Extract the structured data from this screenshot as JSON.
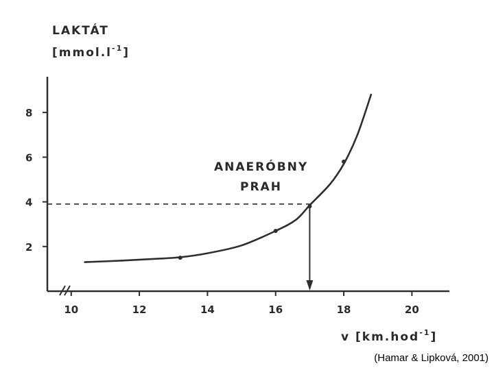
{
  "chart_data": {
    "type": "line",
    "ylabel_line1": "LAKTÁT",
    "ylabel_line2": "[mmol.l",
    "ylabel_sup": "-1",
    "ylabel_close": "]",
    "xlabel": "v [km.hod",
    "xlabel_sup": "-1",
    "xlabel_close": "]",
    "x_ticks": [
      "10",
      "12",
      "14",
      "16",
      "18",
      "20"
    ],
    "y_ticks": [
      "2",
      "4",
      "6",
      "8"
    ],
    "xlim": [
      9.3,
      21.1
    ],
    "ylim": [
      0,
      9.6
    ],
    "axis_break": true,
    "series": [
      {
        "curve": [
          [
            10.4,
            1.3
          ],
          [
            11.5,
            1.37
          ],
          [
            12.5,
            1.45
          ],
          [
            13.2,
            1.52
          ],
          [
            14.0,
            1.7
          ],
          [
            15.0,
            2.05
          ],
          [
            16.0,
            2.7
          ],
          [
            16.6,
            3.2
          ],
          [
            17.0,
            3.85
          ],
          [
            17.6,
            4.8
          ],
          [
            18.0,
            5.7
          ],
          [
            18.4,
            7.0
          ],
          [
            18.8,
            8.8
          ]
        ],
        "points": [
          [
            13.2,
            1.5
          ],
          [
            16.0,
            2.7
          ],
          [
            17.0,
            3.8
          ],
          [
            18.0,
            5.8
          ]
        ]
      }
    ],
    "threshold": {
      "x": 17.0,
      "y": 3.9
    },
    "annotation": [
      "ANAERÓBNY",
      "PRAH"
    ],
    "line_color": "#2e2e2e",
    "citation": "(Hamar & Lipková, 2001)"
  }
}
